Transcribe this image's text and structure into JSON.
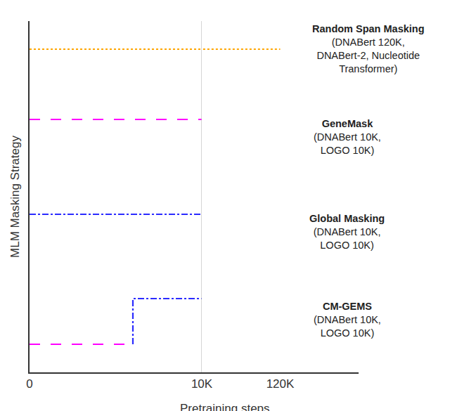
{
  "chart_data": {
    "type": "line",
    "xlabel": "Pretraining steps",
    "ylabel": "MLM Masking Strategy",
    "ylim": [
      0,
      10
    ],
    "tick_labels": "x",
    "grid": false,
    "x_panels": [
      {
        "xlim": [
          0,
          10000
        ],
        "xticks": [
          0,
          {
            "value": 10000,
            "label": "10K"
          }
        ]
      },
      {
        "xlim": [
          10000,
          230000
        ],
        "xticks": [
          {
            "value": 120000,
            "label": "120K"
          }
        ]
      }
    ],
    "vlines": [
      10000
    ],
    "series": [
      {
        "name": "Random Span Masking",
        "note": [
          "(DNABert 120K,",
          "DNABert-2, Nucleotide",
          "Transformer)"
        ],
        "segments": [
          {
            "color": "#ffa500",
            "line_style": "dot",
            "x": [
              0,
              120000
            ],
            "values": [
              9.2,
              9.2
            ]
          }
        ]
      },
      {
        "name": "GeneMask",
        "note": [
          "(DNABert 10K,",
          "LOGO 10K)"
        ],
        "segments": [
          {
            "color": "#ff00ff",
            "line_style": "longdash",
            "x": [
              0,
              10000
            ],
            "values": [
              7.2,
              7.2
            ]
          }
        ]
      },
      {
        "name": "Global Masking",
        "note": [
          "(DNABert 10K,",
          "LOGO 10K)"
        ],
        "segments": [
          {
            "color": "#2b2bff",
            "line_style": "dashdot",
            "x": [
              0,
              10000
            ],
            "values": [
              4.5,
              4.5
            ]
          }
        ]
      },
      {
        "name": "CM-GEMS",
        "note": [
          "(DNABert 10K,",
          "LOGO 10K)"
        ],
        "segments": [
          {
            "color": "#ff00ff",
            "line_style": "longdash",
            "x": [
              0,
              6000
            ],
            "values": [
              0.8,
              0.8
            ]
          },
          {
            "color": "#2b2bff",
            "line_style": "dashdot",
            "x": [
              6000,
              6000,
              10000
            ],
            "values": [
              0.8,
              2.1,
              2.1
            ]
          }
        ]
      }
    ]
  }
}
